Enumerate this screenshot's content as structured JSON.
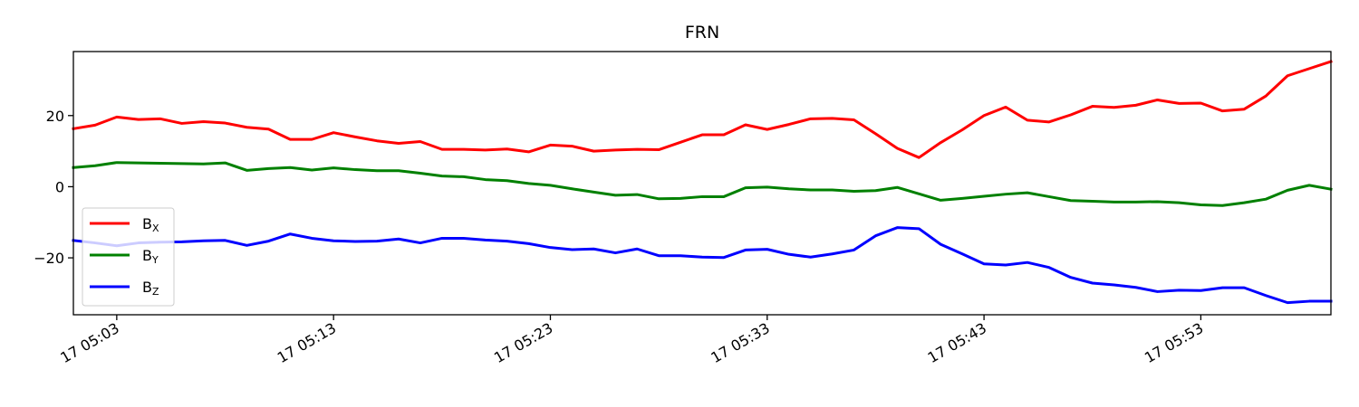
{
  "chart_data": {
    "type": "line",
    "title": "FRN",
    "xlabel": "",
    "ylabel": "",
    "x_tick_labels": [
      "17 05:03",
      "17 05:13",
      "17 05:23",
      "17 05:33",
      "17 05:43",
      "17 05:53"
    ],
    "x_ticks_minutes": [
      3,
      13,
      23,
      33,
      43,
      53
    ],
    "xlim_minutes": [
      1,
      59
    ],
    "y_ticks": [
      20,
      0,
      -20
    ],
    "y_tick_labels": [
      "20",
      "0",
      "−20"
    ],
    "ylim": [
      -36,
      38
    ],
    "grid": false,
    "legend_position": "lower-left",
    "x_minutes": [
      1,
      2,
      3,
      4,
      5,
      6,
      7,
      8,
      9,
      10,
      11,
      12,
      13,
      14,
      15,
      16,
      17,
      18,
      19,
      20,
      21,
      22,
      23,
      24,
      25,
      26,
      27,
      28,
      29,
      30,
      31,
      32,
      33,
      34,
      35,
      36,
      37,
      38,
      39,
      40,
      41,
      42,
      43,
      44,
      45,
      46,
      47,
      48,
      49,
      50,
      51,
      52,
      53,
      54,
      55,
      56,
      57,
      58,
      59
    ],
    "series": [
      {
        "name": "B_X",
        "label_main": "B",
        "label_sub": "X",
        "color": "#ff0000",
        "values": [
          16.3,
          17.3,
          19.6,
          18.9,
          19.1,
          17.8,
          18.3,
          17.9,
          16.7,
          16.2,
          13.3,
          13.3,
          15.2,
          14.0,
          12.9,
          12.2,
          12.7,
          10.5,
          10.5,
          10.3,
          10.6,
          9.8,
          11.7,
          11.4,
          10.0,
          10.3,
          10.5,
          10.4,
          12.5,
          14.6,
          14.6,
          17.4,
          16.1,
          17.5,
          19.1,
          19.2,
          18.8,
          14.9,
          10.8,
          8.2,
          12.4,
          16.0,
          20.0,
          22.4,
          18.7,
          18.2,
          20.2,
          22.6,
          22.3,
          22.9,
          24.4,
          23.4,
          23.5,
          21.3,
          21.8,
          25.5,
          31.2,
          33.2,
          35.2
        ]
      },
      {
        "name": "B_Y",
        "label_main": "B",
        "label_sub": "Y",
        "color": "#008000",
        "values": [
          5.4,
          5.9,
          6.8,
          6.7,
          6.6,
          6.5,
          6.4,
          6.7,
          4.6,
          5.1,
          5.4,
          4.7,
          5.3,
          4.8,
          4.5,
          4.5,
          3.8,
          3.0,
          2.8,
          2.0,
          1.7,
          0.9,
          0.4,
          -0.6,
          -1.5,
          -2.4,
          -2.2,
          -3.4,
          -3.3,
          -2.8,
          -2.8,
          -0.3,
          -0.1,
          -0.6,
          -0.9,
          -0.9,
          -1.3,
          -1.1,
          -0.2,
          -2.0,
          -3.8,
          -3.3,
          -2.7,
          -2.1,
          -1.7,
          -2.8,
          -3.9,
          -4.1,
          -4.3,
          -4.3,
          -4.2,
          -4.5,
          -5.1,
          -5.3,
          -4.5,
          -3.5,
          -1.0,
          0.4,
          -0.7
        ]
      },
      {
        "name": "B_Z",
        "label_main": "B",
        "label_sub": "Z",
        "color": "#0000ff",
        "values": [
          -15.1,
          -15.8,
          -16.6,
          -15.8,
          -15.6,
          -15.5,
          -15.2,
          -15.1,
          -16.5,
          -15.3,
          -13.3,
          -14.5,
          -15.2,
          -15.4,
          -15.3,
          -14.7,
          -15.8,
          -14.5,
          -14.5,
          -15.0,
          -15.3,
          -16.0,
          -17.1,
          -17.7,
          -17.5,
          -18.6,
          -17.5,
          -19.4,
          -19.4,
          -19.8,
          -19.9,
          -17.8,
          -17.6,
          -19.0,
          -19.8,
          -18.9,
          -17.8,
          -13.8,
          -11.5,
          -11.8,
          -16.2,
          -18.9,
          -21.7,
          -22.0,
          -21.3,
          -22.7,
          -25.5,
          -27.1,
          -27.6,
          -28.3,
          -29.5,
          -29.1,
          -29.2,
          -28.4,
          -28.4,
          -30.6,
          -32.6,
          -32.2,
          -32.2
        ]
      }
    ]
  }
}
